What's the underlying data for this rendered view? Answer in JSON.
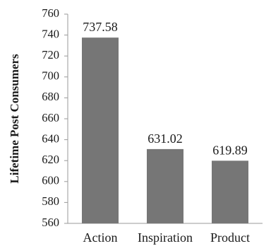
{
  "chart_data": {
    "type": "bar",
    "title": "",
    "xlabel": "",
    "ylabel": "Lifetime Post Consumers",
    "categories": [
      "Action",
      "Inspiration",
      "Product"
    ],
    "values": [
      737.58,
      631.02,
      619.89
    ],
    "data_labels": [
      "737.58",
      "631.02",
      "619.89"
    ],
    "ylim": [
      560,
      760
    ],
    "yticks": [
      560,
      580,
      600,
      620,
      640,
      660,
      680,
      700,
      720,
      740,
      760
    ],
    "grid": false,
    "legend": "none",
    "bar_color": "#767676"
  }
}
